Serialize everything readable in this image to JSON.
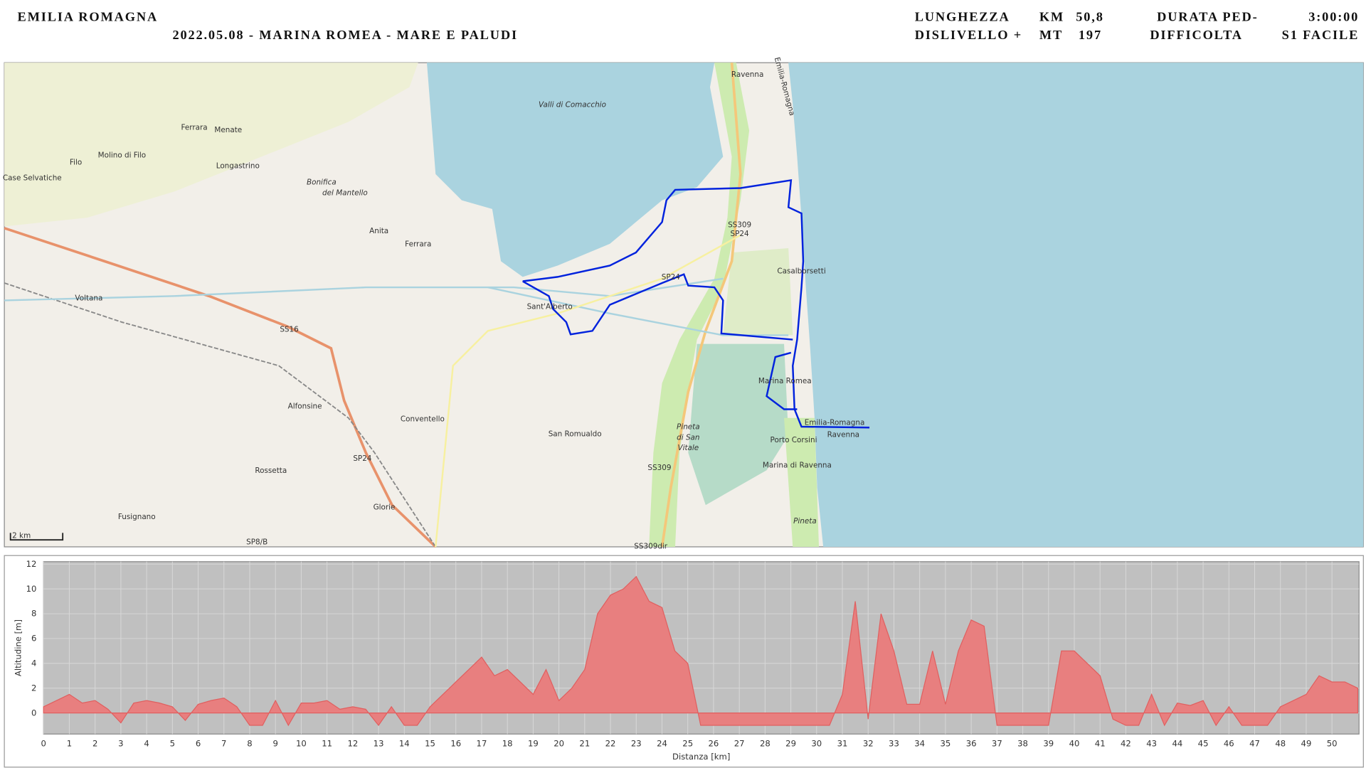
{
  "header": {
    "region": "EMILIA ROMAGNA",
    "title": "2022.05.08 - MARINA ROMEA - MARE E PALUDI",
    "stats": [
      {
        "label": "LUNGHEZZA",
        "unit": "KM",
        "value": "50,8"
      },
      {
        "label": "DISLIVELLO +",
        "unit": "MT",
        "value": "197"
      },
      {
        "label": "DURATA PED-",
        "value": "3:00:00"
      },
      {
        "label": "DIFFICOLTA",
        "value": "S1 FACILE"
      }
    ]
  },
  "map": {
    "scale": "2 km",
    "labels": [
      "Valli di Comacchio",
      "Ravenna",
      "Emilia-Romagna",
      "Ferrara",
      "Menate",
      "Molino di Filo",
      "Filo",
      "Longastrino",
      "Case Selvatiche",
      "Bonifica",
      "del Mantello",
      "Anita",
      "Ferrara",
      "SS309",
      "SP24",
      "SP24",
      "Casalborsetti",
      "Voltana",
      "Sant'Alberto",
      "SS16",
      "Marina Romea",
      "Alfonsine",
      "Conventello",
      "Emilia-Romagna",
      "Ravenna",
      "San Romualdo",
      "Pineta",
      "di San",
      "Vitale",
      "Porto Corsini",
      "SP24",
      "Marina di Ravenna",
      "SS309",
      "Rossetta",
      "Glorie",
      "Fusignano",
      "Pineta",
      "SP8/B",
      "SS309dir"
    ]
  },
  "chart_data": {
    "type": "area",
    "xlabel": "Distanza [km]",
    "ylabel": "Altitudine [m]",
    "color": "#e87f7f",
    "grid": true,
    "x": [
      0,
      0.5,
      1,
      1.5,
      2,
      2.5,
      3,
      3.5,
      4,
      4.5,
      5,
      5.5,
      6,
      6.5,
      7,
      7.5,
      8,
      8.5,
      9,
      9.5,
      10,
      10.5,
      11,
      11.5,
      12,
      12.5,
      13,
      13.5,
      14,
      14.5,
      15,
      15.5,
      16,
      16.5,
      17,
      17.5,
      18,
      18.5,
      19,
      19.5,
      20,
      20.5,
      21,
      21.5,
      22,
      22.5,
      23,
      23.5,
      24,
      24.5,
      25,
      25.5,
      26,
      26.5,
      27,
      27.5,
      28,
      28.5,
      29,
      29.5,
      30,
      30.5,
      31,
      31.5,
      32,
      32.5,
      33,
      33.5,
      34,
      34.5,
      35,
      35.5,
      36,
      36.5,
      37,
      37.5,
      38,
      38.5,
      39,
      39.5,
      40,
      40.5,
      41,
      41.5,
      42,
      42.5,
      43,
      43.5,
      44,
      44.5,
      45,
      45.5,
      46,
      46.5,
      47,
      47.5,
      48,
      48.5,
      49,
      49.5,
      50,
      50.5,
      51
    ],
    "values": [
      0.5,
      1,
      1.5,
      0.8,
      1,
      0.3,
      -0.8,
      0.8,
      1,
      0.8,
      0.5,
      -0.6,
      0.7,
      1,
      1.2,
      0.5,
      -1,
      -1,
      1,
      -1,
      0.8,
      0.8,
      1,
      0.3,
      0.5,
      0.3,
      -1,
      0.5,
      -1,
      -1,
      0.5,
      1.5,
      2.5,
      3.5,
      4.5,
      3,
      3.5,
      2.5,
      1.5,
      3.5,
      1,
      2,
      3.5,
      8,
      9.5,
      10,
      11,
      9,
      8.5,
      5,
      4,
      -1,
      -1,
      -1,
      -1,
      -1,
      -1,
      -1,
      -1,
      -1,
      -1,
      -1,
      1.5,
      9,
      -0.5,
      8,
      5,
      0.7,
      0.7,
      5,
      0.7,
      5,
      7.5,
      7,
      -1,
      -1,
      -1,
      -1,
      -1,
      5,
      5,
      4,
      3,
      -0.5,
      -1,
      -1,
      1.5,
      -1,
      0.8,
      0.6,
      1,
      -1,
      0.5,
      -1,
      -1,
      -1,
      0.5,
      1,
      1.5,
      3,
      2.5,
      2.5,
      2
    ],
    "xlim": [
      0,
      51.05
    ],
    "ylim": [
      -1.7,
      12.2
    ],
    "xticks": [
      0,
      1,
      2,
      3,
      4,
      5,
      6,
      7,
      8,
      9,
      10,
      11,
      12,
      13,
      14,
      15,
      16,
      17,
      18,
      19,
      20,
      21,
      22,
      23,
      24,
      25,
      26,
      27,
      28,
      29,
      30,
      31,
      32,
      33,
      34,
      35,
      36,
      37,
      38,
      39,
      40,
      41,
      42,
      43,
      44,
      45,
      46,
      47,
      48,
      49,
      50
    ],
    "yticks": [
      0,
      2,
      4,
      6,
      8,
      10,
      12
    ]
  }
}
